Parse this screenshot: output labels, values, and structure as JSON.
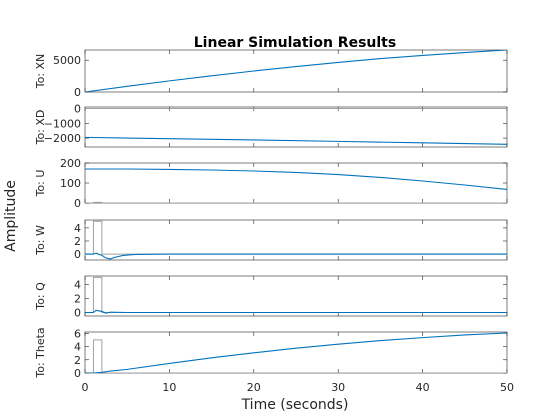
{
  "chart_data": {
    "type": "line",
    "title": "Linear Simulation Results",
    "xlabel": "Time (seconds)",
    "ylabel": "Amplitude",
    "xlim": [
      0,
      50
    ],
    "xticks": [
      0,
      10,
      20,
      30,
      40,
      50
    ],
    "series_color": "#0072bd",
    "input_color": "#a0a0a0",
    "grid": false,
    "panels": [
      {
        "label": "To: XN",
        "ylim": [
          0,
          6600
        ],
        "yticks": [
          0,
          5000
        ],
        "response": [
          [
            0,
            0
          ],
          [
            5,
            900
          ],
          [
            10,
            1750
          ],
          [
            15,
            2550
          ],
          [
            20,
            3300
          ],
          [
            25,
            4000
          ],
          [
            30,
            4650
          ],
          [
            35,
            5250
          ],
          [
            40,
            5750
          ],
          [
            45,
            6200
          ],
          [
            50,
            6600
          ]
        ],
        "input": []
      },
      {
        "label": "To: XD",
        "ylim": [
          -2600,
          100
        ],
        "yticks": [
          -2000,
          -1000,
          0
        ],
        "response": [
          [
            0,
            -1950
          ],
          [
            10,
            -2040
          ],
          [
            20,
            -2120
          ],
          [
            30,
            -2220
          ],
          [
            40,
            -2320
          ],
          [
            50,
            -2420
          ]
        ],
        "input": [
          [
            0,
            0
          ],
          [
            50,
            0
          ]
        ]
      },
      {
        "label": "To: U",
        "ylim": [
          0,
          200
        ],
        "yticks": [
          0,
          100,
          200
        ],
        "response": [
          [
            0,
            170
          ],
          [
            5,
            170
          ],
          [
            10,
            168
          ],
          [
            15,
            165
          ],
          [
            20,
            160
          ],
          [
            25,
            153
          ],
          [
            30,
            142
          ],
          [
            35,
            128
          ],
          [
            40,
            110
          ],
          [
            45,
            90
          ],
          [
            50,
            68
          ]
        ],
        "input": [
          [
            0,
            0
          ],
          [
            1,
            0
          ],
          [
            1,
            3
          ],
          [
            2,
            3
          ],
          [
            2,
            0
          ],
          [
            50,
            0
          ]
        ]
      },
      {
        "label": "To: W",
        "ylim": [
          -0.9,
          5.2
        ],
        "yticks": [
          0,
          2,
          4
        ],
        "response": [
          [
            0,
            0
          ],
          [
            1,
            0
          ],
          [
            1.3,
            0.15
          ],
          [
            2,
            -0.2
          ],
          [
            2.5,
            -0.6
          ],
          [
            3,
            -0.75
          ],
          [
            3.5,
            -0.5
          ],
          [
            4.5,
            -0.2
          ],
          [
            6,
            -0.05
          ],
          [
            10,
            0
          ],
          [
            50,
            0
          ]
        ],
        "input": [
          [
            0,
            0
          ],
          [
            1,
            0
          ],
          [
            1,
            5
          ],
          [
            2,
            5
          ],
          [
            2,
            0
          ],
          [
            50,
            0
          ]
        ]
      },
      {
        "label": "To: Q",
        "ylim": [
          -0.5,
          5.2
        ],
        "yticks": [
          0,
          2,
          4
        ],
        "response": [
          [
            0,
            0
          ],
          [
            1,
            0
          ],
          [
            1.3,
            0.3
          ],
          [
            2,
            0.15
          ],
          [
            2.5,
            -0.1
          ],
          [
            3,
            0.05
          ],
          [
            5,
            0
          ],
          [
            50,
            0
          ]
        ],
        "input": [
          [
            0,
            0
          ],
          [
            1,
            0
          ],
          [
            1,
            5
          ],
          [
            2,
            5
          ],
          [
            2,
            0
          ],
          [
            50,
            0
          ]
        ]
      },
      {
        "label": "To: Theta",
        "ylim": [
          0,
          6.2
        ],
        "yticks": [
          0,
          2,
          4,
          6
        ],
        "response": [
          [
            0,
            0
          ],
          [
            1,
            0
          ],
          [
            2,
            0.1
          ],
          [
            3,
            0.3
          ],
          [
            5,
            0.55
          ],
          [
            10,
            1.45
          ],
          [
            15,
            2.3
          ],
          [
            20,
            3.05
          ],
          [
            25,
            3.75
          ],
          [
            30,
            4.35
          ],
          [
            35,
            4.9
          ],
          [
            40,
            5.35
          ],
          [
            45,
            5.75
          ],
          [
            50,
            6.05
          ]
        ],
        "input": [
          [
            0,
            0
          ],
          [
            1,
            0
          ],
          [
            1,
            5
          ],
          [
            2,
            5
          ],
          [
            2,
            0
          ],
          [
            50,
            0
          ]
        ]
      }
    ]
  }
}
